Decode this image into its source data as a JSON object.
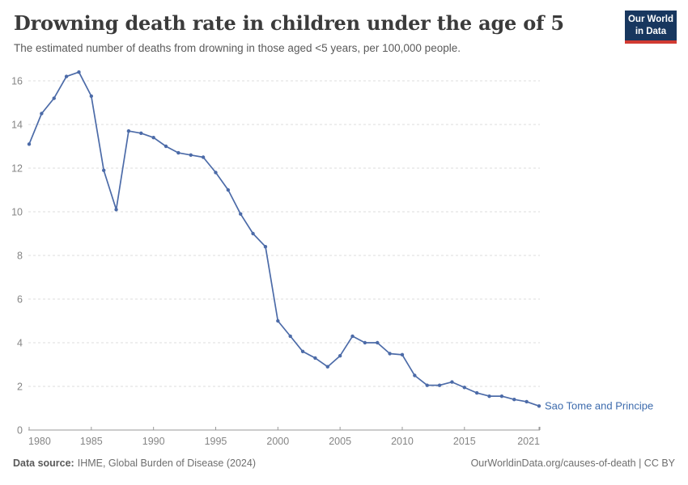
{
  "header": {
    "title": "Drowning death rate in children under the age of 5",
    "subtitle": "The estimated number of deaths from drowning in those aged <5 years, per 100,000 people.",
    "logo_line1": "Our World",
    "logo_line2": "in Data"
  },
  "chart_data": {
    "type": "line",
    "title": "Drowning death rate in children under the age of 5",
    "xlabel": "",
    "ylabel": "",
    "xlim": [
      1980,
      2021
    ],
    "ylim": [
      0,
      16.5
    ],
    "xticks": [
      1980,
      1985,
      1990,
      1995,
      2000,
      2005,
      2010,
      2015,
      2021
    ],
    "yticks": [
      0,
      2,
      4,
      6,
      8,
      10,
      12,
      14,
      16
    ],
    "grid": "horizontal-dashed",
    "legend_position": "end-of-line",
    "x": [
      1980,
      1981,
      1982,
      1983,
      1984,
      1985,
      1986,
      1987,
      1988,
      1989,
      1990,
      1991,
      1992,
      1993,
      1994,
      1995,
      1996,
      1997,
      1998,
      1999,
      2000,
      2001,
      2002,
      2003,
      2004,
      2005,
      2006,
      2007,
      2008,
      2009,
      2010,
      2011,
      2012,
      2013,
      2014,
      2015,
      2016,
      2017,
      2018,
      2019,
      2020,
      2021
    ],
    "series": [
      {
        "name": "Sao Tome and Principe",
        "values": [
          13.1,
          14.5,
          15.2,
          16.2,
          16.4,
          15.3,
          11.9,
          10.1,
          13.7,
          13.6,
          13.4,
          13.0,
          12.7,
          12.6,
          12.5,
          11.8,
          11.0,
          9.9,
          9.0,
          8.4,
          5.0,
          4.3,
          3.6,
          3.3,
          2.9,
          3.4,
          4.3,
          4.0,
          4.0,
          3.5,
          3.45,
          2.5,
          2.05,
          2.05,
          2.2,
          1.95,
          1.7,
          1.55,
          1.55,
          1.4,
          1.3,
          1.1
        ]
      }
    ]
  },
  "colors": {
    "line": "#4c6ba8",
    "series_label": "#3d6bad",
    "grid": "#dddddd",
    "axis": "#999999",
    "tick_label": "#858585",
    "title": "#3b3b3b",
    "logo_bg": "#18375f",
    "logo_stripe": "#d13b32"
  },
  "footer": {
    "source_label": "Data source:",
    "source_value": "IHME, Global Burden of Disease (2024)",
    "rights": "OurWorldinData.org/causes-of-death | CC BY"
  }
}
